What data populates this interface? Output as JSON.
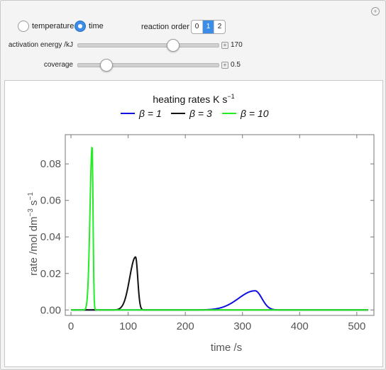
{
  "controls": {
    "mode_options": [
      {
        "label": "temperature",
        "selected": false
      },
      {
        "label": "time",
        "selected": true
      }
    ],
    "reaction_order_label": "reaction order",
    "reaction_order_options": [
      "0",
      "1",
      "2"
    ],
    "reaction_order_selected": "1",
    "activation_energy": {
      "label": "activation energy /kJ",
      "value": "170",
      "fraction": 0.68
    },
    "coverage": {
      "label": "coverage",
      "value": "0.5",
      "fraction": 0.2
    }
  },
  "chart_data": {
    "type": "line",
    "title": "heating rates K s",
    "title_superscript": "−1",
    "xlabel": "time /s",
    "ylabel": "rate /mol dm",
    "ylabel_sup1": "−3",
    "ylabel_mid": " s",
    "ylabel_sup2": "−1",
    "xlim": [
      -10,
      530
    ],
    "ylim": [
      -0.003,
      0.096
    ],
    "xticks": [
      0,
      100,
      200,
      300,
      400,
      500
    ],
    "yticks": [
      0.0,
      0.02,
      0.04,
      0.06,
      0.08
    ],
    "ytick_labels": [
      "0.00",
      "0.02",
      "0.04",
      "0.06",
      "0.08"
    ],
    "legend_position": "top-center",
    "series": [
      {
        "name": "β = 1",
        "color": "#1010e0",
        "peak_x": 322,
        "peak_y": 0.0105,
        "x_start": 230,
        "x_end": 360
      },
      {
        "name": "β = 3",
        "color": "#111111",
        "peak_x": 113,
        "peak_y": 0.029,
        "x_start": 80,
        "x_end": 125
      },
      {
        "name": "β = 10",
        "color": "#22ee22",
        "peak_x": 37,
        "peak_y": 0.09,
        "x_start": 25,
        "x_end": 42
      }
    ]
  }
}
